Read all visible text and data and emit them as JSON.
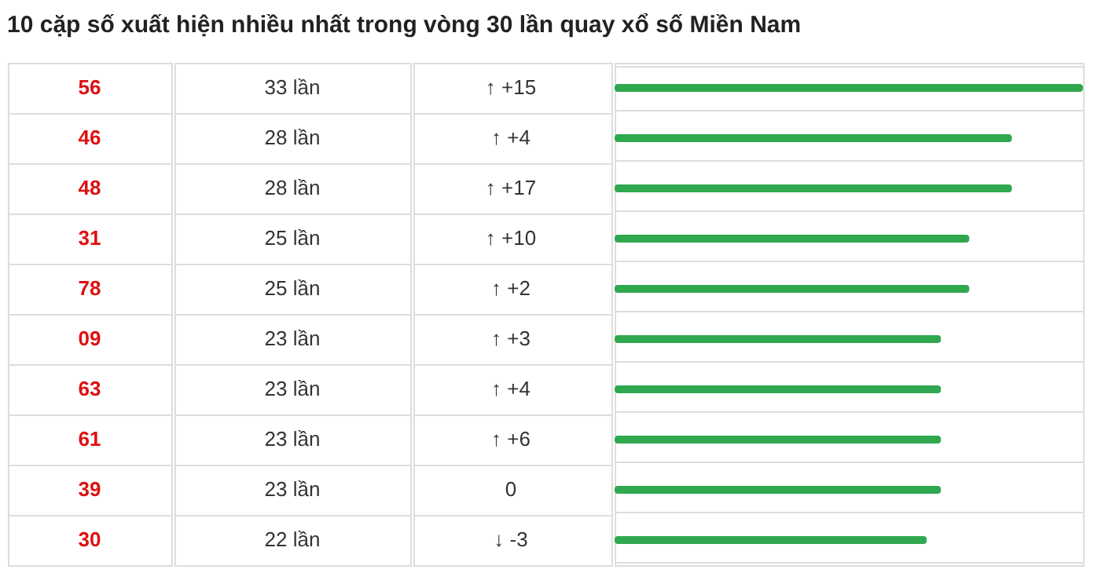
{
  "chart_data": {
    "type": "bar",
    "orientation": "horizontal",
    "title": "10 cặp số xuất hiện nhiều nhất trong vòng 30 lần quay xổ số Miền Nam",
    "categories": [
      "56",
      "46",
      "48",
      "31",
      "78",
      "09",
      "63",
      "61",
      "39",
      "30"
    ],
    "values": [
      33,
      28,
      28,
      25,
      25,
      23,
      23,
      23,
      23,
      22
    ],
    "value_labels": [
      "33 lần",
      "28 lần",
      "28 lần",
      "25 lần",
      "25 lần",
      "23 lần",
      "23 lần",
      "23 lần",
      "23 lần",
      "22 lần"
    ],
    "color": "#2fa84f",
    "xlim": [
      0,
      33
    ],
    "tick_labels": false,
    "annotations": [
      "↑ +15",
      "↑ +4",
      "↑ +17",
      "↑ +10",
      "↑ +2",
      "↑ +3",
      "↑ +4",
      "↑ +6",
      "0",
      "↓ -3"
    ]
  }
}
